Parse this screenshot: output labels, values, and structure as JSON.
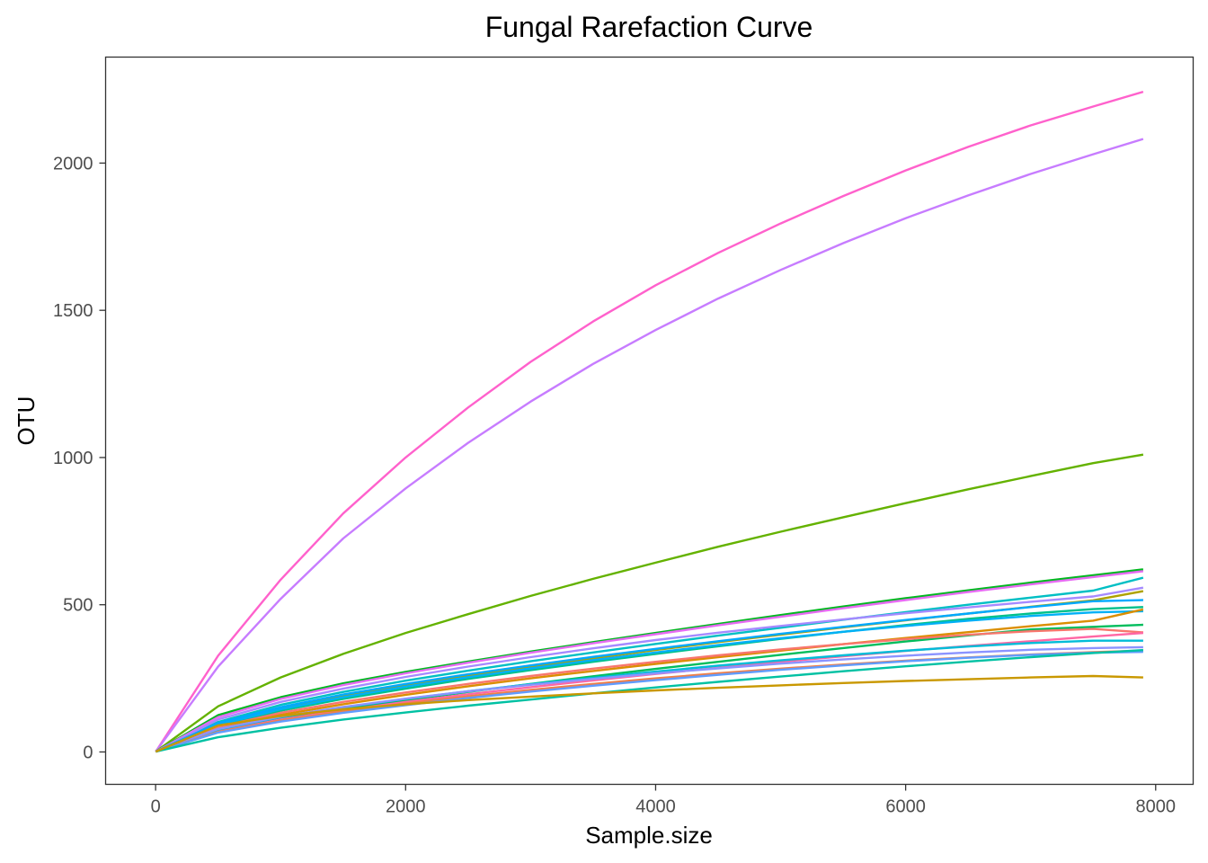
{
  "chart_data": {
    "type": "line",
    "title": "Fungal Rarefaction Curve",
    "xlabel": "Sample.size",
    "ylabel": "OTU",
    "xlim": [
      -400,
      8300
    ],
    "ylim": [
      -110,
      2360
    ],
    "xticks": [
      0,
      2000,
      4000,
      6000,
      8000
    ],
    "yticks": [
      0,
      500,
      1000,
      1500,
      2000
    ],
    "grid": false,
    "legend": "none",
    "x": [
      1,
      500,
      1000,
      1500,
      2000,
      2500,
      3000,
      3500,
      4000,
      4500,
      5000,
      5500,
      6000,
      6500,
      7000,
      7500,
      7900
    ],
    "series": [
      {
        "color": "#FF61CC",
        "values": [
          1,
          327,
          585,
          810,
          1000,
          1170,
          1325,
          1462,
          1585,
          1695,
          1795,
          1888,
          1975,
          2055,
          2128,
          2192,
          2242
        ]
      },
      {
        "color": "#C77CFF",
        "values": [
          1,
          290,
          520,
          725,
          895,
          1050,
          1190,
          1318,
          1433,
          1540,
          1637,
          1728,
          1813,
          1890,
          1963,
          2030,
          2082
        ]
      },
      {
        "color": "#64B200",
        "values": [
          1,
          155,
          253,
          333,
          404,
          468,
          530,
          588,
          643,
          697,
          748,
          797,
          845,
          892,
          937,
          981,
          1010
        ]
      },
      {
        "color": "#00B81F",
        "values": [
          1,
          125,
          186,
          233,
          272,
          307,
          341,
          373,
          404,
          435,
          465,
          494,
          522,
          549,
          575,
          600,
          620
        ]
      },
      {
        "color": "#E76BF3",
        "values": [
          1,
          118,
          180,
          227,
          267,
          303,
          337,
          369,
          400,
          430,
          459,
          488,
          516,
          543,
          569,
          594,
          614
        ]
      },
      {
        "color": "#00BFC4",
        "values": [
          1,
          102,
          160,
          204,
          242,
          276,
          308,
          338,
          367,
          395,
          422,
          449,
          475,
          500,
          524,
          548,
          592
        ]
      },
      {
        "color": "#A58AFF",
        "values": [
          1,
          110,
          170,
          215,
          255,
          290,
          322,
          352,
          380,
          405,
          428,
          450,
          471,
          491,
          510,
          528,
          558
        ]
      },
      {
        "color": "#AEA200",
        "values": [
          1,
          95,
          148,
          190,
          226,
          259,
          290,
          318,
          346,
          373,
          398,
          423,
          447,
          470,
          493,
          515,
          546
        ]
      },
      {
        "color": "#00A9FF",
        "values": [
          1,
          98,
          152,
          195,
          231,
          264,
          294,
          323,
          350,
          376,
          401,
          425,
          448,
          470,
          492,
          512,
          516
        ]
      },
      {
        "color": "#00C08B",
        "values": [
          1,
          88,
          140,
          180,
          215,
          248,
          278,
          306,
          333,
          359,
          384,
          408,
          431,
          452,
          470,
          485,
          492
        ]
      },
      {
        "color": "#00B0F6",
        "values": [
          1,
          92,
          145,
          186,
          222,
          254,
          284,
          312,
          338,
          363,
          386,
          408,
          428,
          446,
          462,
          474,
          478
        ]
      },
      {
        "color": "#DB8E00",
        "values": [
          1,
          80,
          126,
          162,
          194,
          223,
          250,
          275,
          299,
          322,
          344,
          366,
          387,
          407,
          427,
          446,
          484
        ]
      },
      {
        "color": "#00BD5C",
        "values": [
          1,
          72,
          113,
          146,
          176,
          204,
          231,
          257,
          282,
          306,
          330,
          353,
          375,
          396,
          416,
          425,
          432
        ]
      },
      {
        "color": "#F8766D",
        "values": [
          1,
          85,
          133,
          170,
          202,
          231,
          258,
          283,
          306,
          328,
          348,
          366,
          383,
          398,
          410,
          418,
          406
        ]
      },
      {
        "color": "#FF67A4",
        "values": [
          1,
          70,
          110,
          142,
          170,
          196,
          220,
          243,
          265,
          286,
          306,
          325,
          343,
          360,
          376,
          392,
          404
        ]
      },
      {
        "color": "#00BCD8",
        "values": [
          1,
          76,
          118,
          151,
          180,
          206,
          230,
          252,
          273,
          293,
          311,
          328,
          344,
          358,
          370,
          378,
          378
        ]
      },
      {
        "color": "#8B93FF",
        "values": [
          1,
          78,
          120,
          153,
          181,
          206,
          228,
          248,
          267,
          284,
          300,
          314,
          327,
          338,
          347,
          353,
          356
        ]
      },
      {
        "color": "#EF7F49",
        "values": [
          1,
          68,
          107,
          138,
          165,
          189,
          211,
          231,
          250,
          267,
          283,
          297,
          310,
          321,
          331,
          339,
          344
        ]
      },
      {
        "color": "#619CFF",
        "values": [
          1,
          66,
          103,
          133,
          159,
          183,
          205,
          225,
          244,
          262,
          279,
          294,
          308,
          320,
          330,
          337,
          340
        ]
      },
      {
        "color": "#00C1A3",
        "values": [
          1,
          50,
          82,
          110,
          134,
          157,
          178,
          199,
          219,
          238,
          256,
          274,
          291,
          307,
          322,
          336,
          346
        ]
      },
      {
        "color": "#C99800",
        "values": [
          1,
          90,
          122,
          145,
          162,
          176,
          188,
          199,
          209,
          218,
          226,
          234,
          241,
          247,
          253,
          258,
          253
        ]
      }
    ]
  }
}
